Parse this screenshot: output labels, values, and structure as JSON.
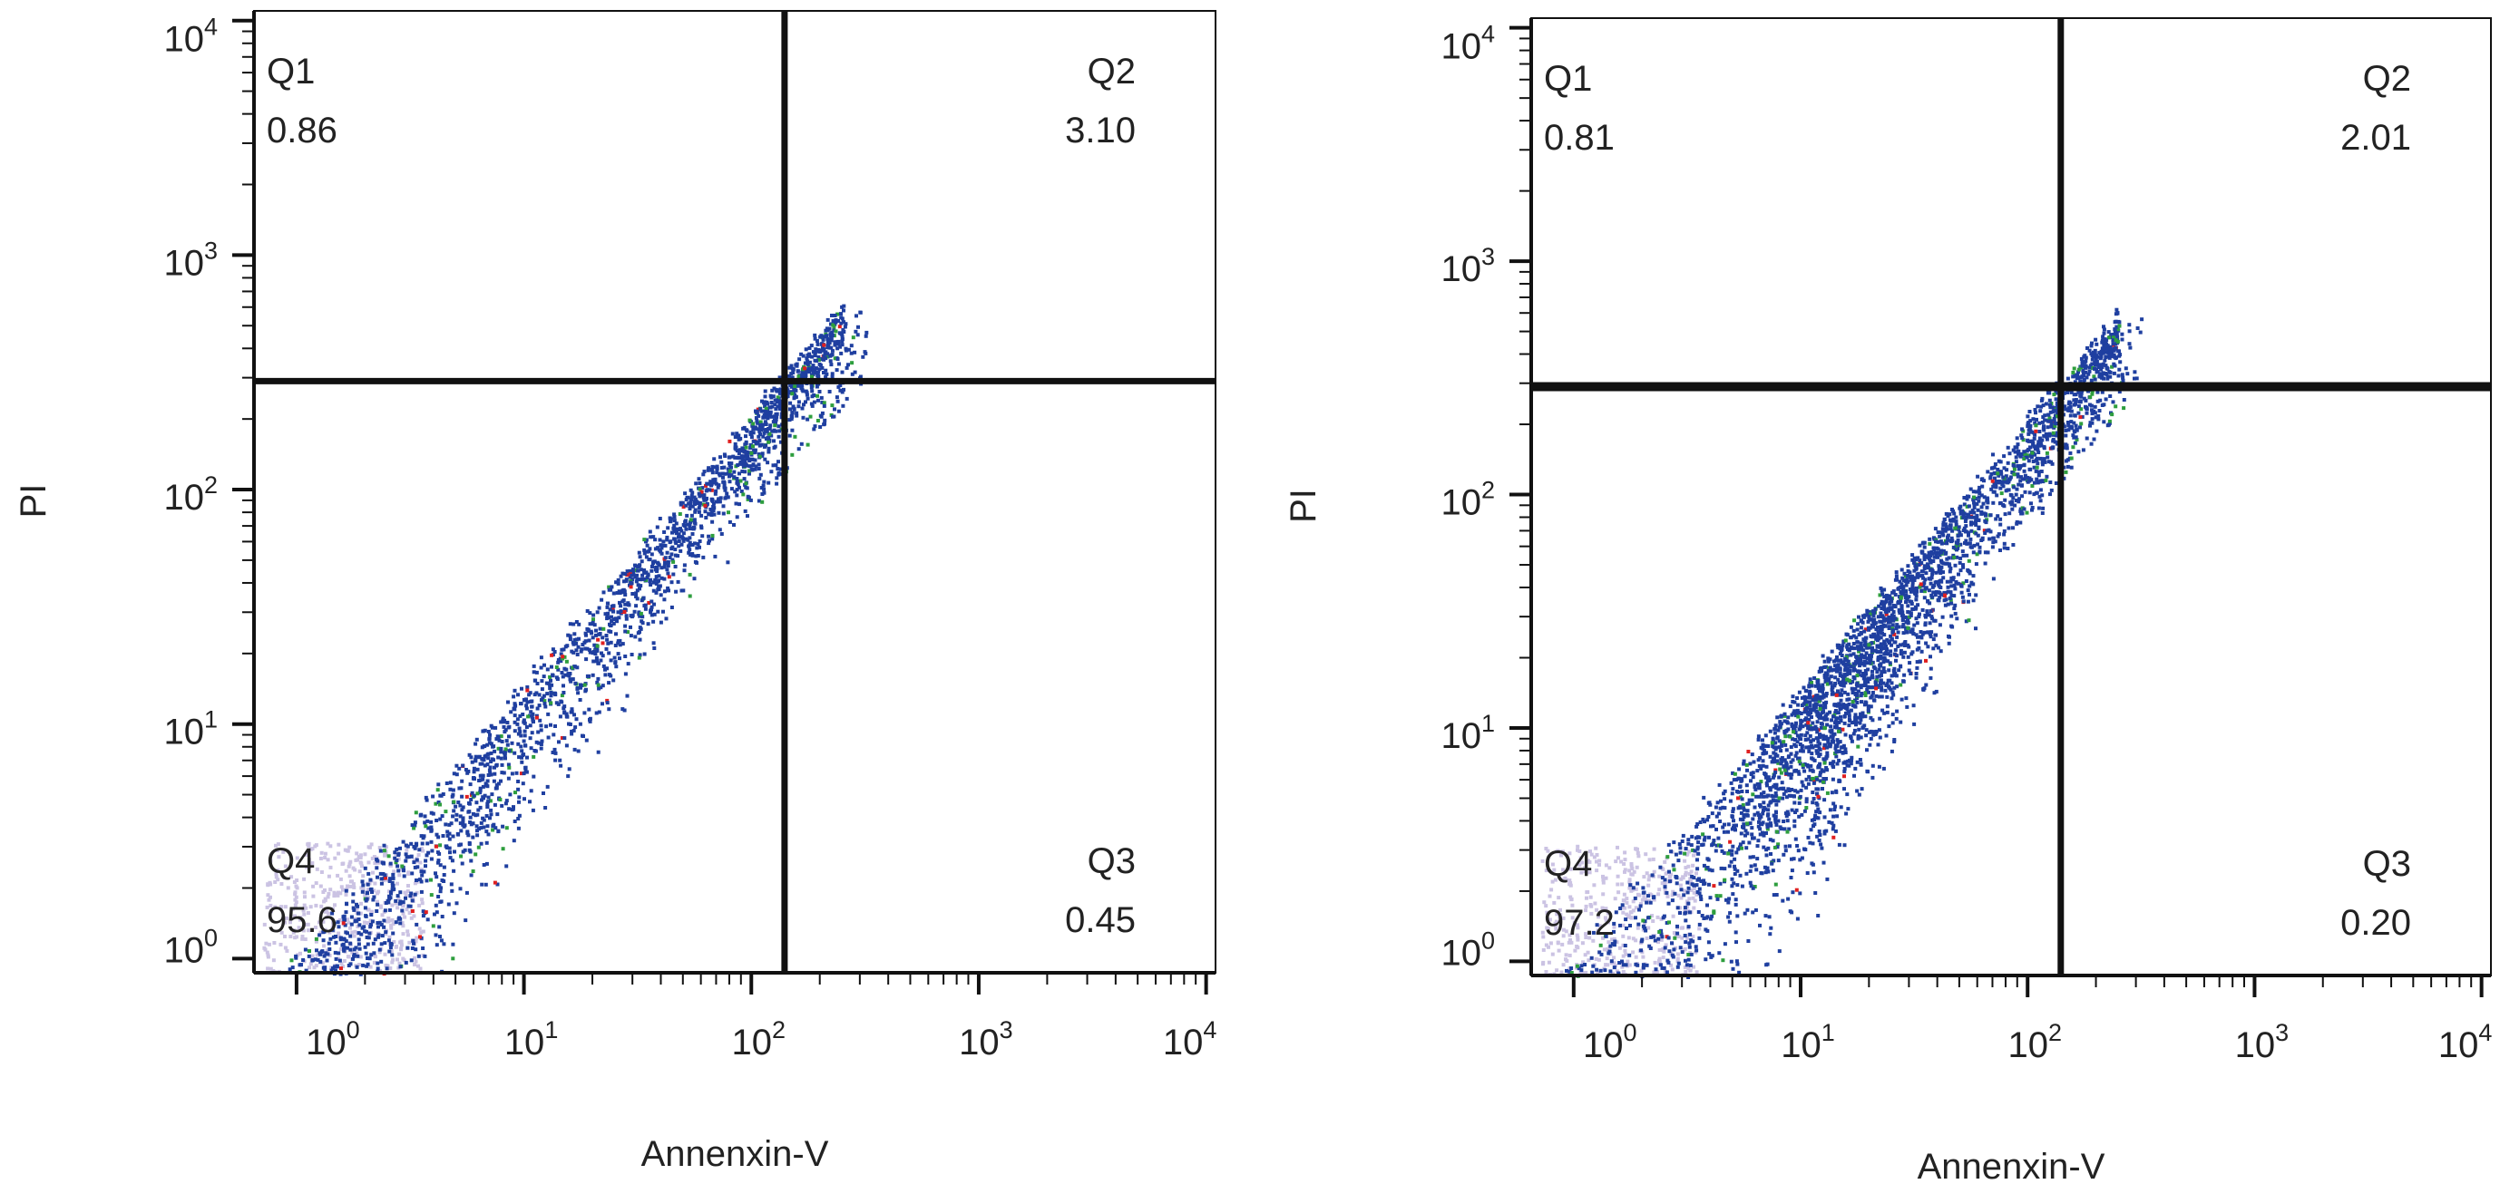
{
  "chart_data": [
    {
      "type": "scatter",
      "title": "",
      "xlabel": "Annenxin-V",
      "ylabel": "PI",
      "x_scale": "log",
      "y_scale": "log",
      "xlim": [
        0.65,
        11000
      ],
      "ylim": [
        0.87,
        11000
      ],
      "x_ticks": [
        {
          "base": "10",
          "exp": "0"
        },
        {
          "base": "10",
          "exp": "1"
        },
        {
          "base": "10",
          "exp": "2"
        },
        {
          "base": "10",
          "exp": "3"
        },
        {
          "base": "10",
          "exp": "4"
        }
      ],
      "y_ticks": [
        {
          "base": "10",
          "exp": "0"
        },
        {
          "base": "10",
          "exp": "1"
        },
        {
          "base": "10",
          "exp": "2"
        },
        {
          "base": "10",
          "exp": "3"
        },
        {
          "base": "10",
          "exp": "4"
        }
      ],
      "gate": {
        "x": 140,
        "y": 290
      },
      "quadrants": [
        {
          "name": "Q1",
          "value": "0.86"
        },
        {
          "name": "Q2",
          "value": "3.10"
        },
        {
          "name": "Q3",
          "value": "0.45"
        },
        {
          "name": "Q4",
          "value": "95.6"
        }
      ],
      "density": "dense diagonal band from x≈1,y≈1 rising to x≈300,y≈900; light lavender low-density cluster near the origin",
      "colors": {
        "low": "#cbc3e3",
        "mid": "#1f3fa0",
        "high": "#2e9e3e",
        "peak": "#e02020"
      }
    },
    {
      "type": "scatter",
      "title": "",
      "xlabel": "Annenxin-V",
      "ylabel": "PI",
      "x_scale": "log",
      "y_scale": "log",
      "xlim": [
        0.65,
        11000
      ],
      "ylim": [
        0.87,
        11000
      ],
      "x_ticks": [
        {
          "base": "10",
          "exp": "0"
        },
        {
          "base": "10",
          "exp": "1"
        },
        {
          "base": "10",
          "exp": "2"
        },
        {
          "base": "10",
          "exp": "3"
        },
        {
          "base": "10",
          "exp": "4"
        }
      ],
      "y_ticks": [
        {
          "base": "10",
          "exp": "0"
        },
        {
          "base": "10",
          "exp": "1"
        },
        {
          "base": "10",
          "exp": "2"
        },
        {
          "base": "10",
          "exp": "3"
        },
        {
          "base": "10",
          "exp": "4"
        }
      ],
      "gate": {
        "x": 140,
        "y": 290
      },
      "quadrants": [
        {
          "name": "Q1",
          "value": "0.81"
        },
        {
          "name": "Q2",
          "value": "2.01"
        },
        {
          "name": "Q3",
          "value": "0.20"
        },
        {
          "name": "Q4",
          "value": "97.2"
        }
      ],
      "density": "broad dense band from x≈1,y≈1 rising to x≈300,y≈900, densest around x≈30,y≈5; light lavender cluster near the origin",
      "colors": {
        "low": "#cbc3e3",
        "mid": "#1f3fa0",
        "high": "#2e9e3e",
        "peak": "#e02020"
      }
    }
  ]
}
